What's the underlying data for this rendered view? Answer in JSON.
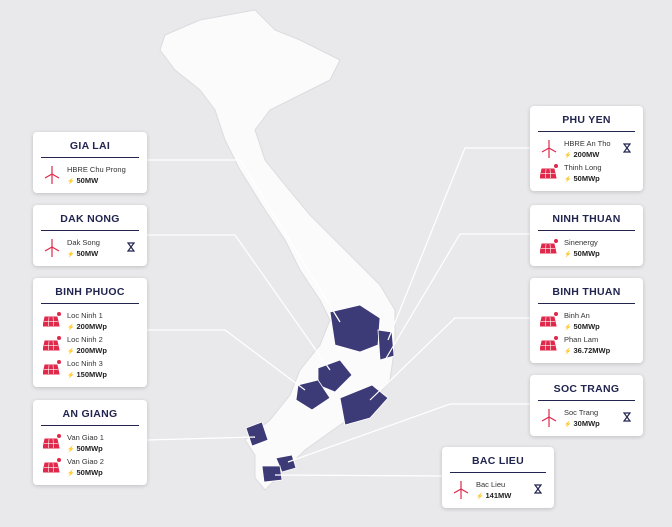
{
  "provinces": [
    {
      "name": "GIA LAI",
      "projects": [
        {
          "name": "HBRE Chu Prong",
          "capacity": "50MW",
          "kind": "wind",
          "under_construction": false
        }
      ]
    },
    {
      "name": "DAK NONG",
      "projects": [
        {
          "name": "Dak Song",
          "capacity": "50MW",
          "kind": "wind",
          "under_construction": true
        }
      ]
    },
    {
      "name": "BINH PHUOC",
      "projects": [
        {
          "name": "Loc Ninh 1",
          "capacity": "200MWp",
          "kind": "solar",
          "under_construction": false
        },
        {
          "name": "Loc Ninh 2",
          "capacity": "200MWp",
          "kind": "solar",
          "under_construction": false
        },
        {
          "name": "Loc Ninh 3",
          "capacity": "150MWp",
          "kind": "solar",
          "under_construction": false
        }
      ]
    },
    {
      "name": "AN GIANG",
      "projects": [
        {
          "name": "Van Giao 1",
          "capacity": "50MWp",
          "kind": "solar",
          "under_construction": false
        },
        {
          "name": "Van Giao 2",
          "capacity": "50MWp",
          "kind": "solar",
          "under_construction": false
        }
      ]
    },
    {
      "name": "PHU YEN",
      "projects": [
        {
          "name": "HBRE An Tho",
          "capacity": "200MW",
          "kind": "wind",
          "under_construction": true
        },
        {
          "name": "Thinh Long",
          "capacity": "50MWp",
          "kind": "solar",
          "under_construction": false
        }
      ]
    },
    {
      "name": "NINH THUAN",
      "projects": [
        {
          "name": "Sinenergy",
          "capacity": "50MWp",
          "kind": "solar",
          "under_construction": false
        }
      ]
    },
    {
      "name": "BINH THUAN",
      "projects": [
        {
          "name": "Binh An",
          "capacity": "50MWp",
          "kind": "solar",
          "under_construction": false
        },
        {
          "name": "Phan Lam",
          "capacity": "36.72MWp",
          "kind": "solar",
          "under_construction": false
        }
      ]
    },
    {
      "name": "SOC TRANG",
      "projects": [
        {
          "name": "Soc Trang",
          "capacity": "30MWp",
          "kind": "wind",
          "under_construction": true
        }
      ]
    },
    {
      "name": "BAC LIEU",
      "projects": [
        {
          "name": "Bac Lieu",
          "capacity": "141MW",
          "kind": "wind",
          "under_construction": true
        }
      ]
    }
  ]
}
